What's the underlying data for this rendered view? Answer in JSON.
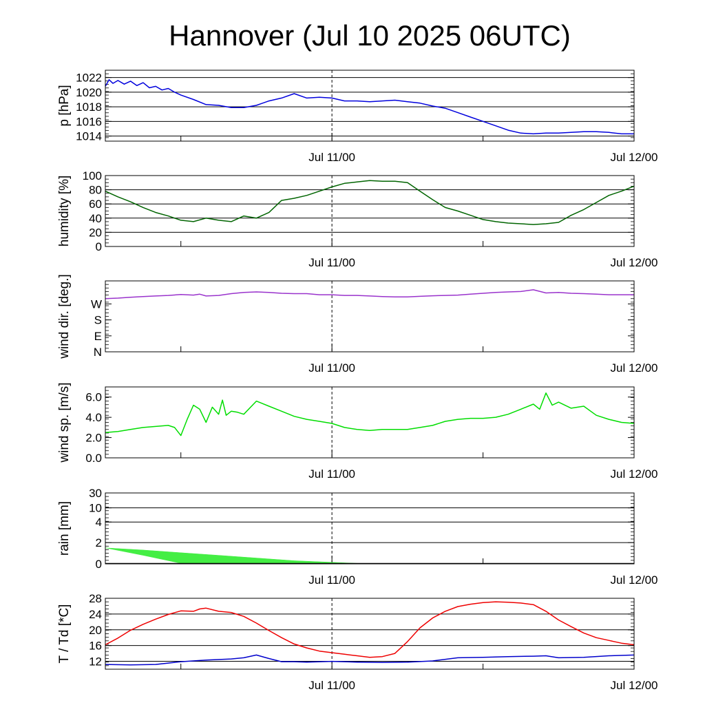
{
  "title": "Hannover (Jul 10 2025 06UTC)",
  "x_axis": {
    "start_hour": 0,
    "end_hour": 42,
    "minor_tick_hours": [
      6,
      30
    ],
    "major_ticks": [
      {
        "hour": 18,
        "label": "Jul 11/00"
      },
      {
        "hour": 42,
        "label": "Jul 12/00"
      }
    ],
    "reference_line_hour": 18
  },
  "colors": {
    "pressure": "#0000dd",
    "humidity": "#006400",
    "wind_direction": "#9932cc",
    "wind_speed": "#00dd00",
    "rain_fill": "#44ee44",
    "temperature": "#ee0000",
    "dewpoint": "#0000cc"
  },
  "chart_data": [
    {
      "type": "line",
      "ylabel": "p [hPa]",
      "ylim": [
        1013.3,
        1023.0
      ],
      "yticks": [
        1014,
        1016,
        1018,
        1020,
        1022
      ],
      "ytick_labels": [
        "1014",
        "1016",
        "1018",
        "1020",
        "1022"
      ],
      "grid": true,
      "series": [
        {
          "color_key": "pressure",
          "x": [
            0,
            0.3,
            0.6,
            1,
            1.5,
            2,
            2.5,
            3,
            3.5,
            4,
            4.5,
            5,
            5.5,
            6,
            7,
            8,
            9,
            10,
            11,
            12,
            13,
            14,
            15,
            16,
            17,
            18,
            19,
            20,
            21,
            22,
            23,
            24,
            25,
            26,
            27,
            28,
            29,
            30,
            31,
            32,
            33,
            34,
            35,
            36,
            37,
            38,
            39,
            40,
            41,
            42
          ],
          "y": [
            1020.8,
            1021.7,
            1021.2,
            1021.6,
            1021.1,
            1021.5,
            1020.9,
            1021.3,
            1020.6,
            1020.8,
            1020.3,
            1020.5,
            1020.0,
            1019.6,
            1019.0,
            1018.3,
            1018.2,
            1017.9,
            1017.9,
            1018.2,
            1018.8,
            1019.2,
            1019.8,
            1019.2,
            1019.3,
            1019.2,
            1018.8,
            1018.8,
            1018.7,
            1018.8,
            1018.9,
            1018.7,
            1018.5,
            1018.1,
            1017.8,
            1017.2,
            1016.6,
            1016.0,
            1015.4,
            1014.8,
            1014.4,
            1014.3,
            1014.4,
            1014.4,
            1014.5,
            1014.6,
            1014.6,
            1014.5,
            1014.3,
            1014.3
          ]
        }
      ]
    },
    {
      "type": "line",
      "ylabel": "humidity [%]",
      "ylim": [
        0,
        100
      ],
      "yticks": [
        0,
        20,
        40,
        60,
        80,
        100
      ],
      "ytick_labels": [
        "0",
        "20",
        "40",
        "60",
        "80",
        "100"
      ],
      "grid": true,
      "series": [
        {
          "color_key": "humidity",
          "x": [
            0,
            1,
            2,
            3,
            4,
            5,
            6,
            7,
            8,
            9,
            10,
            11,
            12,
            13,
            14,
            15,
            16,
            17,
            18,
            19,
            20,
            21,
            22,
            23,
            24,
            25,
            26,
            27,
            28,
            29,
            30,
            31,
            32,
            33,
            34,
            35,
            36,
            37,
            38,
            39,
            40,
            41,
            42
          ],
          "y": [
            78,
            70,
            63,
            55,
            48,
            43,
            37,
            35,
            40,
            37,
            35,
            43,
            40,
            48,
            65,
            68,
            72,
            78,
            84,
            89,
            91,
            93,
            92,
            92,
            90,
            78,
            66,
            55,
            50,
            44,
            38,
            35,
            33,
            32,
            31,
            32,
            34,
            44,
            52,
            62,
            72,
            78,
            85
          ]
        }
      ]
    },
    {
      "type": "line",
      "ylabel": "wind dir. [deg.]",
      "ylim": [
        0,
        400
      ],
      "yticks": [
        0,
        90,
        180,
        270
      ],
      "ytick_labels": [
        "N",
        "E",
        "S",
        "W"
      ],
      "grid": false,
      "series": [
        {
          "color_key": "wind_direction",
          "x": [
            0,
            1,
            2,
            3,
            4,
            5,
            6,
            7,
            7.5,
            8,
            9,
            10,
            11,
            12,
            13,
            14,
            15,
            16,
            17,
            18,
            19,
            20,
            21,
            22,
            23,
            24,
            25,
            26,
            27,
            28,
            29,
            30,
            31,
            32,
            33,
            34,
            35,
            36,
            37,
            38,
            39,
            40,
            41,
            42
          ],
          "y": [
            300,
            303,
            308,
            312,
            315,
            318,
            323,
            320,
            325,
            315,
            318,
            328,
            335,
            338,
            335,
            330,
            328,
            328,
            322,
            322,
            318,
            318,
            315,
            312,
            310,
            310,
            313,
            316,
            318,
            320,
            325,
            330,
            335,
            338,
            340,
            350,
            332,
            335,
            330,
            328,
            325,
            322,
            322,
            322
          ]
        }
      ]
    },
    {
      "type": "line",
      "ylabel": "wind sp. [m/s]",
      "ylim": [
        0,
        7.0
      ],
      "yticks": [
        0.0,
        2.0,
        4.0,
        6.0
      ],
      "ytick_labels": [
        "0.0",
        "2.0",
        "4.0",
        "6.0"
      ],
      "grid": false,
      "series": [
        {
          "color_key": "wind_speed",
          "x": [
            0,
            1,
            2,
            3,
            4,
            5,
            5.5,
            6,
            6.5,
            7,
            7.5,
            8,
            8.5,
            9,
            9.3,
            9.6,
            10,
            10.5,
            11,
            12,
            13,
            14,
            15,
            16,
            17,
            18,
            19,
            20,
            21,
            22,
            23,
            24,
            25,
            26,
            27,
            28,
            29,
            30,
            31,
            32,
            33,
            34,
            34.5,
            35,
            35.5,
            36,
            37,
            38,
            39,
            40,
            41,
            42
          ],
          "y": [
            2.5,
            2.6,
            2.8,
            3.0,
            3.1,
            3.2,
            3.0,
            2.2,
            3.8,
            5.2,
            4.8,
            3.5,
            5.0,
            4.3,
            5.7,
            4.2,
            4.6,
            4.5,
            4.3,
            5.6,
            5.1,
            4.6,
            4.1,
            3.8,
            3.6,
            3.4,
            3.0,
            2.8,
            2.7,
            2.8,
            2.8,
            2.8,
            3.0,
            3.2,
            3.6,
            3.8,
            3.9,
            3.9,
            4.0,
            4.3,
            4.8,
            5.3,
            4.8,
            6.4,
            5.2,
            5.5,
            4.9,
            5.1,
            4.2,
            3.8,
            3.5,
            3.4
          ]
        }
      ]
    },
    {
      "type": "area",
      "ylabel": "rain [mm]",
      "ylim": [
        0,
        30
      ],
      "yticks": [
        0,
        2,
        4,
        10,
        30
      ],
      "ytick_labels": [
        "0",
        "2",
        "4",
        "10",
        "30"
      ],
      "grid": true,
      "series": [
        {
          "color_key": "rain_fill",
          "x": [
            0,
            3,
            6,
            9,
            12,
            15,
            18,
            21
          ],
          "y_upper": [
            1.5,
            1.3,
            1.05,
            0.8,
            0.55,
            0.3,
            0.15,
            0.0
          ],
          "y_lower": [
            1.5,
            0.8,
            0.05,
            0.0,
            0.0,
            0.0,
            0.0,
            0.0
          ]
        }
      ]
    },
    {
      "type": "line",
      "ylabel": "T / Td [*C]",
      "ylim": [
        10,
        28
      ],
      "yticks": [
        12,
        16,
        20,
        24,
        28
      ],
      "ytick_labels": [
        "12",
        "16",
        "20",
        "24",
        "28"
      ],
      "grid": true,
      "series": [
        {
          "color_key": "temperature",
          "x": [
            0,
            1,
            2,
            3,
            4,
            5,
            6,
            7,
            7.5,
            8,
            9,
            10,
            11,
            12,
            13,
            14,
            15,
            16,
            17,
            18,
            19,
            20,
            21,
            22,
            23,
            24,
            25,
            26,
            27,
            28,
            29,
            30,
            31,
            32,
            33,
            34,
            35,
            36,
            37,
            38,
            39,
            40,
            41,
            42
          ],
          "y": [
            16.2,
            17.9,
            19.9,
            21.4,
            22.7,
            23.9,
            24.8,
            24.7,
            25.3,
            25.5,
            24.7,
            24.4,
            23.4,
            21.7,
            19.8,
            18.0,
            16.4,
            15.4,
            14.6,
            14.2,
            13.8,
            13.4,
            13.0,
            13.2,
            14.0,
            17.0,
            20.5,
            23.0,
            24.7,
            25.9,
            26.5,
            26.9,
            27.1,
            27.0,
            26.8,
            26.4,
            24.7,
            22.5,
            20.8,
            19.2,
            18.0,
            17.3,
            16.6,
            16.2
          ]
        },
        {
          "color_key": "dewpoint",
          "x": [
            0,
            2,
            4,
            6,
            8,
            10,
            11,
            12,
            13,
            14,
            15,
            16,
            18,
            20,
            22,
            24,
            26,
            28,
            30,
            32,
            34,
            35,
            36,
            38,
            40,
            42
          ],
          "y": [
            11.2,
            11.1,
            11.2,
            11.9,
            12.3,
            12.6,
            12.9,
            13.6,
            12.7,
            11.9,
            11.9,
            11.8,
            12.0,
            11.8,
            11.7,
            11.8,
            12.1,
            12.9,
            13.0,
            13.2,
            13.3,
            13.4,
            12.9,
            13.0,
            13.4,
            13.6
          ]
        }
      ]
    }
  ]
}
